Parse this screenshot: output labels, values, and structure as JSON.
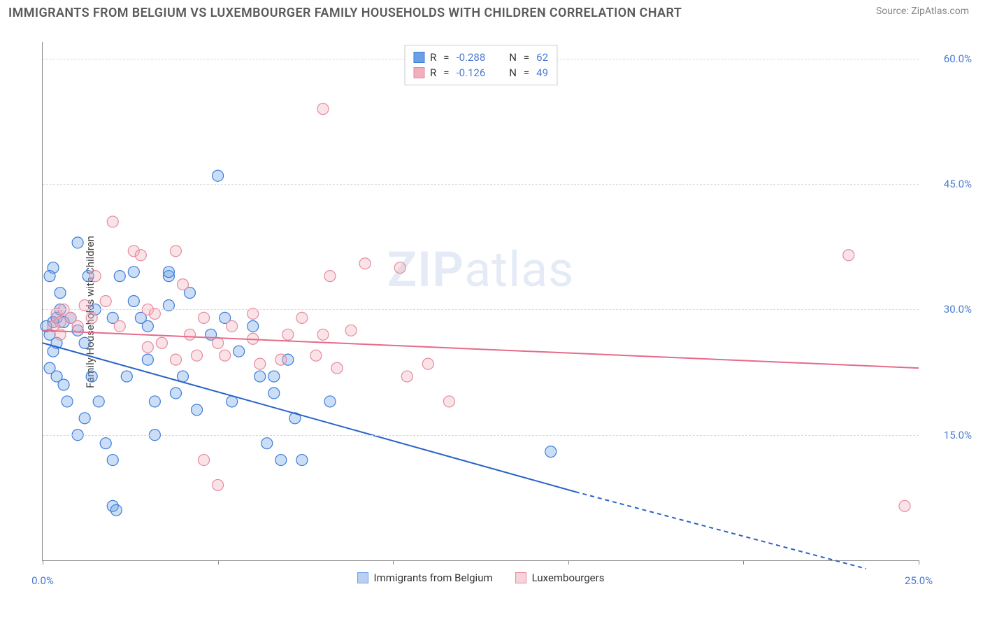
{
  "title": "IMMIGRANTS FROM BELGIUM VS LUXEMBOURGER FAMILY HOUSEHOLDS WITH CHILDREN CORRELATION CHART",
  "source": "Source: ZipAtlas.com",
  "ylabel": "Family Households with Children",
  "watermark_a": "ZIP",
  "watermark_b": "atlas",
  "chart": {
    "type": "scatter-with-regression",
    "background_color": "#ffffff",
    "grid_color": "#d9d9d9",
    "axis_color": "#888888",
    "tick_color": "#4a7bd1",
    "xlim": [
      0.0,
      25.0
    ],
    "ylim": [
      0.0,
      62.0
    ],
    "xticks": [
      0.0,
      5.0,
      10.0,
      15.0,
      20.0,
      25.0
    ],
    "xtick_labels": [
      "0.0%",
      "",
      "",
      "",
      "",
      "25.0%"
    ],
    "yticks": [
      15.0,
      30.0,
      45.0,
      60.0
    ],
    "ytick_labels": [
      "15.0%",
      "30.0%",
      "45.0%",
      "60.0%"
    ],
    "marker_radius": 8,
    "marker_fill_opacity": 0.35,
    "line_width": 2,
    "series": [
      {
        "name": "Immigrants from Belgium",
        "color": "#6aa0e6",
        "stroke": "#3d7dd8",
        "line_color": "#2a62c9",
        "R": "-0.288",
        "N": "62",
        "regression": {
          "x1": 0.0,
          "y1": 26.0,
          "x2": 15.2,
          "y2": 8.2,
          "x2_dash": 23.5,
          "y2_dash": -1.0
        },
        "points": [
          [
            0.2,
            27.0
          ],
          [
            0.3,
            28.5
          ],
          [
            0.4,
            29.0
          ],
          [
            0.5,
            30.0
          ],
          [
            0.4,
            26.0
          ],
          [
            0.3,
            25.0
          ],
          [
            0.2,
            23.0
          ],
          [
            0.6,
            28.5
          ],
          [
            0.1,
            28.0
          ],
          [
            0.3,
            35.0
          ],
          [
            0.5,
            32.0
          ],
          [
            0.2,
            34.0
          ],
          [
            0.4,
            22.0
          ],
          [
            0.8,
            29.0
          ],
          [
            0.6,
            21.0
          ],
          [
            0.7,
            19.0
          ],
          [
            1.0,
            38.0
          ],
          [
            1.0,
            27.5
          ],
          [
            1.2,
            26.0
          ],
          [
            1.3,
            34.0
          ],
          [
            1.5,
            30.0
          ],
          [
            1.4,
            22.0
          ],
          [
            1.6,
            19.0
          ],
          [
            1.2,
            17.0
          ],
          [
            1.0,
            15.0
          ],
          [
            1.8,
            14.0
          ],
          [
            2.0,
            29.0
          ],
          [
            2.2,
            34.0
          ],
          [
            2.0,
            6.5
          ],
          [
            2.1,
            6.0
          ],
          [
            2.4,
            22.0
          ],
          [
            2.6,
            31.0
          ],
          [
            2.6,
            34.5
          ],
          [
            2.8,
            29.0
          ],
          [
            2.0,
            12.0
          ],
          [
            3.0,
            24.0
          ],
          [
            3.0,
            28.0
          ],
          [
            3.2,
            19.0
          ],
          [
            3.2,
            15.0
          ],
          [
            3.6,
            34.0
          ],
          [
            3.6,
            30.5
          ],
          [
            3.8,
            20.0
          ],
          [
            4.0,
            22.0
          ],
          [
            4.2,
            32.0
          ],
          [
            4.4,
            18.0
          ],
          [
            3.6,
            34.5
          ],
          [
            4.8,
            27.0
          ],
          [
            5.0,
            46.0
          ],
          [
            5.2,
            29.0
          ],
          [
            5.4,
            19.0
          ],
          [
            5.6,
            25.0
          ],
          [
            6.0,
            28.0
          ],
          [
            6.2,
            22.0
          ],
          [
            6.4,
            14.0
          ],
          [
            6.6,
            20.0
          ],
          [
            6.8,
            12.0
          ],
          [
            7.2,
            17.0
          ],
          [
            7.4,
            12.0
          ],
          [
            7.0,
            24.0
          ],
          [
            8.2,
            19.0
          ],
          [
            14.5,
            13.0
          ],
          [
            6.6,
            22.0
          ]
        ]
      },
      {
        "name": "Luxembourgers",
        "color": "#f2aebb",
        "stroke": "#e68aa0",
        "line_color": "#e56b8a",
        "R": "-0.126",
        "N": "49",
        "regression": {
          "x1": 0.0,
          "y1": 27.5,
          "x2": 25.0,
          "y2": 23.0
        },
        "points": [
          [
            0.3,
            28.0
          ],
          [
            0.4,
            29.5
          ],
          [
            0.5,
            27.0
          ],
          [
            0.6,
            30.0
          ],
          [
            0.5,
            28.5
          ],
          [
            0.8,
            29.0
          ],
          [
            1.0,
            28.0
          ],
          [
            1.2,
            30.5
          ],
          [
            1.4,
            29.0
          ],
          [
            1.5,
            34.0
          ],
          [
            1.8,
            31.0
          ],
          [
            2.0,
            40.5
          ],
          [
            2.2,
            28.0
          ],
          [
            2.6,
            37.0
          ],
          [
            2.8,
            36.5
          ],
          [
            3.0,
            30.0
          ],
          [
            3.0,
            25.5
          ],
          [
            3.2,
            29.5
          ],
          [
            3.4,
            26.0
          ],
          [
            3.8,
            37.0
          ],
          [
            3.8,
            24.0
          ],
          [
            4.0,
            33.0
          ],
          [
            4.2,
            27.0
          ],
          [
            4.4,
            24.5
          ],
          [
            4.6,
            29.0
          ],
          [
            4.6,
            12.0
          ],
          [
            5.0,
            26.0
          ],
          [
            5.2,
            24.5
          ],
          [
            5.0,
            9.0
          ],
          [
            5.4,
            28.0
          ],
          [
            6.0,
            26.5
          ],
          [
            6.2,
            23.5
          ],
          [
            6.0,
            29.5
          ],
          [
            6.8,
            24.0
          ],
          [
            7.0,
            27.0
          ],
          [
            7.4,
            29.0
          ],
          [
            7.8,
            24.5
          ],
          [
            8.0,
            27.0
          ],
          [
            8.0,
            54.0
          ],
          [
            8.4,
            23.0
          ],
          [
            8.8,
            27.5
          ],
          [
            9.2,
            35.5
          ],
          [
            10.2,
            35.0
          ],
          [
            10.4,
            22.0
          ],
          [
            11.0,
            23.5
          ],
          [
            11.6,
            19.0
          ],
          [
            23.0,
            36.5
          ],
          [
            24.6,
            6.5
          ],
          [
            8.2,
            34.0
          ]
        ]
      }
    ]
  },
  "legend_top_labels": {
    "R": "R",
    "N": "N",
    "eq": "="
  },
  "legend_bottom": [
    {
      "label": "Immigrants from Belgium",
      "fill": "#b9d0f2",
      "stroke": "#6aa0e6"
    },
    {
      "label": "Luxembourgers",
      "fill": "#f7d2db",
      "stroke": "#e68aa0"
    }
  ]
}
